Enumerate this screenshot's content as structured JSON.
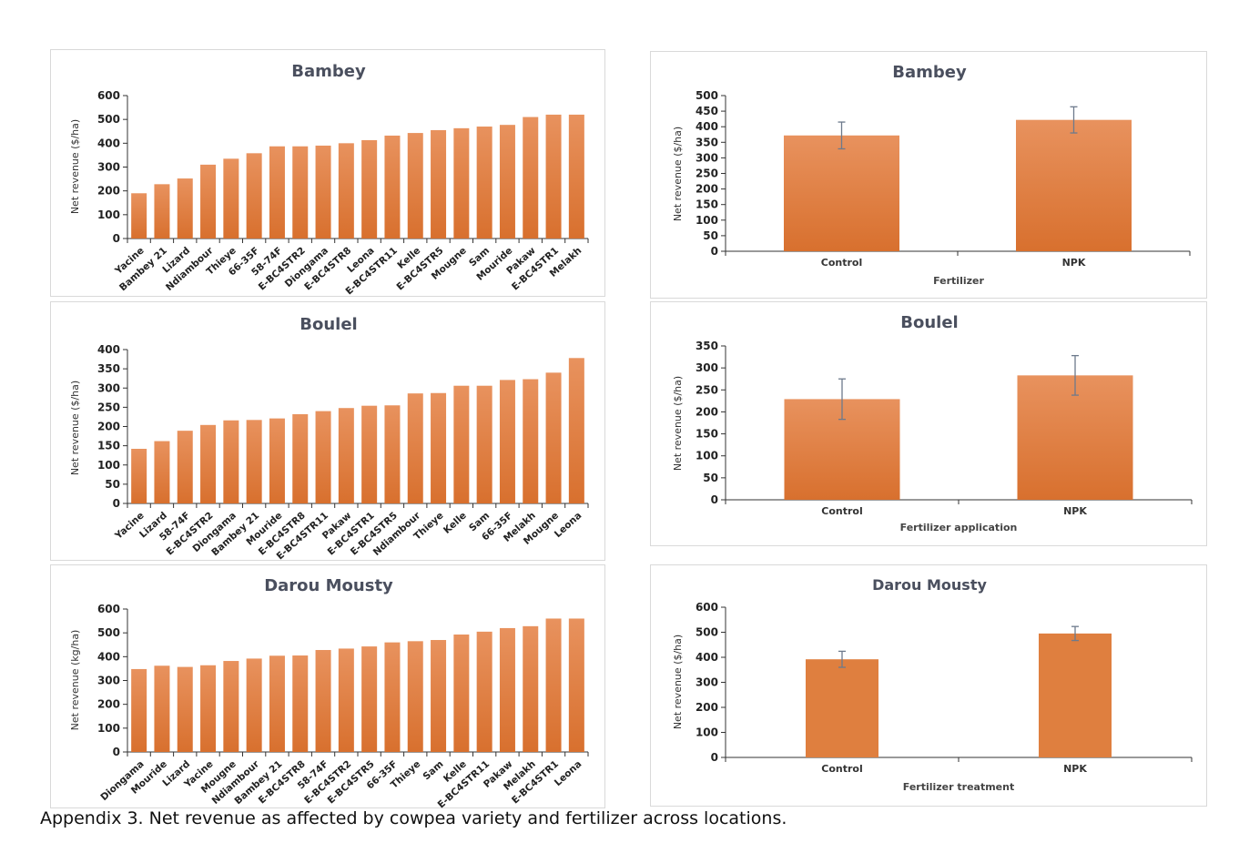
{
  "caption": "Appendix 3. Net revenue as affected by cowpea variety and fertilizer across locations.",
  "colors": {
    "bar_top": "#e8925e",
    "bar_bottom": "#d8702e",
    "bar_flat": "#df7f3f",
    "error": "#6d7a8c",
    "axis": "#333333"
  },
  "chart_data": [
    {
      "id": "bambey-variety",
      "type": "bar",
      "title": "Bambey",
      "xlabel": "",
      "ylabel": "Net revenue ($/ha)",
      "ylim": [
        0,
        600
      ],
      "ystep": 100,
      "categories": [
        "Yacine",
        "Bambey 21",
        "Lizard",
        "Ndiambour",
        "Thieye",
        "66-35F",
        "58-74F",
        "E-BC4STR2",
        "Diongama",
        "E-BC4STR8",
        "Leona",
        "E-BC4STR11",
        "Kelle",
        "E-BC4STR5",
        "Mougne",
        "Sam",
        "Mouride",
        "Pakaw",
        "E-BC4STR1",
        "Melakh"
      ],
      "values": [
        190,
        228,
        252,
        310,
        335,
        358,
        387,
        387,
        390,
        400,
        413,
        432,
        443,
        455,
        463,
        470,
        477,
        510,
        520,
        520
      ]
    },
    {
      "id": "bambey-fertilizer",
      "type": "bar",
      "title": "Bambey",
      "xlabel": "Fertilizer",
      "ylabel": "Net revenue ($/ha)",
      "ylim": [
        0,
        500
      ],
      "ystep": 50,
      "categories": [
        "Control",
        "NPK"
      ],
      "values": [
        372,
        422
      ],
      "errors": [
        43,
        42
      ]
    },
    {
      "id": "boulel-variety",
      "type": "bar",
      "title": "Boulel",
      "xlabel": "",
      "ylabel": "Net revenue ($/ha)",
      "ylim": [
        0,
        400
      ],
      "ystep": 50,
      "categories": [
        "Yacine",
        "Lizard",
        "58-74F",
        "E-BC4STR2",
        "Diongama",
        "Bambey 21",
        "Mouride",
        "E-BC4STR8",
        "E-BC4STR11",
        "Pakaw",
        "E-BC4STR1",
        "E-BC4STR5",
        "Ndiambour",
        "Thieye",
        "Kelle",
        "Sam",
        "66-35F",
        "Melakh",
        "Mougne",
        "Leona"
      ],
      "values": [
        142,
        162,
        189,
        204,
        216,
        217,
        221,
        232,
        240,
        248,
        254,
        255,
        286,
        287,
        306,
        306,
        321,
        323,
        340,
        378
      ]
    },
    {
      "id": "boulel-fertilizer",
      "type": "bar",
      "title": "Boulel",
      "xlabel": "Fertilizer application",
      "ylabel": "Net revenue ($/ha)",
      "ylim": [
        0,
        350
      ],
      "ystep": 50,
      "categories": [
        "Control",
        "NPK"
      ],
      "values": [
        229,
        283
      ],
      "errors": [
        46,
        45
      ]
    },
    {
      "id": "darou-variety",
      "type": "bar",
      "title": "Darou Mousty",
      "xlabel": "",
      "ylabel": "Net revenue (kg/ha)",
      "ylim": [
        0,
        600
      ],
      "ystep": 100,
      "categories": [
        "Diongama",
        "Mouride",
        "Lizard",
        "Yacine",
        "Mougne",
        "Ndiambour",
        "Bambey 21",
        "E-BC4STR8",
        "58-74F",
        "E-BC4STR2",
        "E-BC4STR5",
        "66-35F",
        "Thieye",
        "Sam",
        "Kelle",
        "E-BC4STR11",
        "Pakaw",
        "Melakh",
        "E-BC4STR1",
        "Leona"
      ],
      "values": [
        348,
        362,
        357,
        364,
        382,
        392,
        404,
        405,
        428,
        434,
        443,
        460,
        465,
        470,
        493,
        505,
        520,
        528,
        560,
        560
      ]
    },
    {
      "id": "darou-fertilizer",
      "type": "bar",
      "title": "Darou Mousty",
      "xlabel": "Fertilizer treatment",
      "ylabel": "Net revenue ($/ha)",
      "ylim": [
        0,
        600
      ],
      "ystep": 100,
      "categories": [
        "Control",
        "NPK"
      ],
      "values": [
        392,
        495
      ],
      "errors": [
        32,
        28
      ]
    }
  ]
}
